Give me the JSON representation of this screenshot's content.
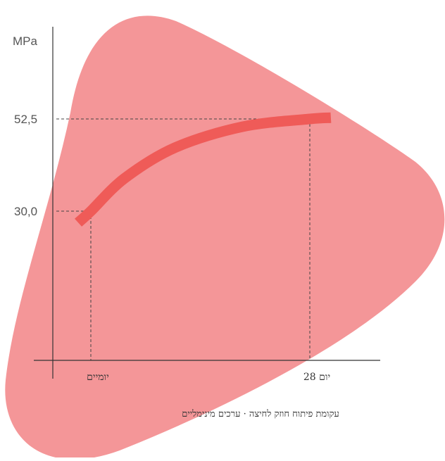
{
  "colors": {
    "blob": "#f49698",
    "curve": "#ef5b58",
    "axis": "#333333",
    "guide": "#444444"
  },
  "chart_data": {
    "type": "line",
    "ylabel": "MPa",
    "y_ticks": [
      {
        "label": "30,0",
        "value": 30.0
      },
      {
        "label": "52,5",
        "value": 52.5
      }
    ],
    "x_ticks": [
      {
        "label": "יומיים",
        "day": 2
      },
      {
        "label": "יום 28",
        "day": 28
      }
    ],
    "series": [
      {
        "values": [
          {
            "x": 0.5,
            "y": 27.2
          },
          {
            "x": 2,
            "y": 30.0
          },
          {
            "x": 6,
            "y": 38.0
          },
          {
            "x": 12,
            "y": 45.5
          },
          {
            "x": 20,
            "y": 50.6
          },
          {
            "x": 28,
            "y": 52.5
          },
          {
            "x": 30.5,
            "y": 52.8
          }
        ]
      }
    ],
    "caption": "עקומת פיתוח חוזק לחיצה · ערכים מינימליים"
  }
}
